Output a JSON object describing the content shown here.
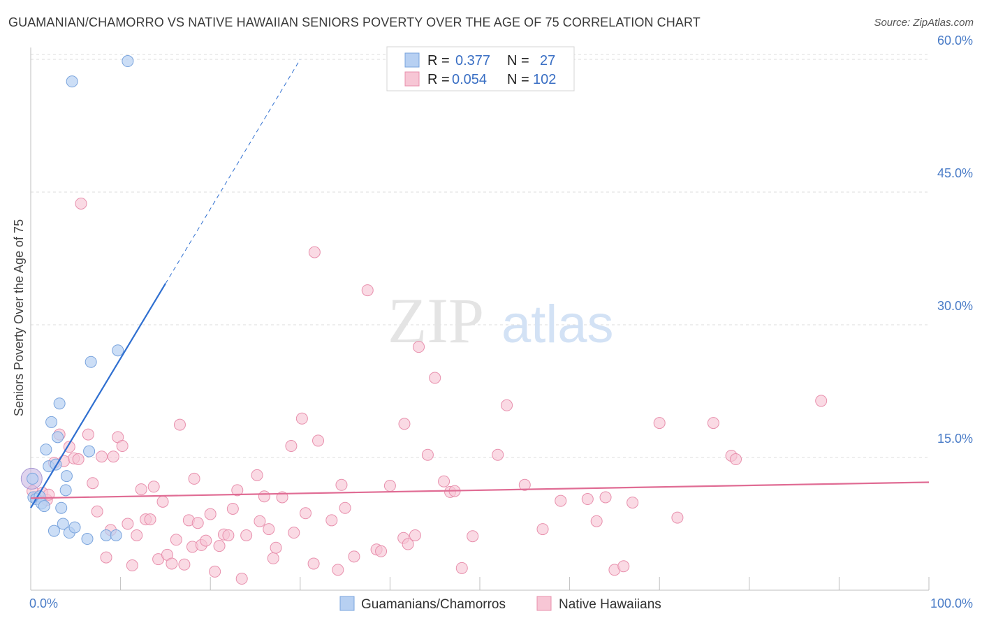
{
  "title": "GUAMANIAN/CHAMORRO VS NATIVE HAWAIIAN SENIORS POVERTY OVER THE AGE OF 75 CORRELATION CHART",
  "source": "Source: ZipAtlas.com",
  "watermark": {
    "zip": "ZIP",
    "atlas": "atlas"
  },
  "colors": {
    "blue_fill": "#b7d0f2",
    "blue_stroke": "#7aa4dd",
    "blue_line": "#2f6fd0",
    "pink_fill": "#f7c6d5",
    "pink_stroke": "#e890ad",
    "pink_line": "#e06c94",
    "grid": "#dcdcdc",
    "tick_text": "#4a7cc7"
  },
  "legend": {
    "rows": [
      {
        "r_label": "R =",
        "r_value": "0.377",
        "n_label": "N =",
        "n_value": "27"
      },
      {
        "r_label": "R =",
        "r_value": "0.054",
        "n_label": "N =",
        "n_value": "102"
      }
    ]
  },
  "bottom_legend": [
    "Guamanians/Chamorros",
    "Native Hawaiians"
  ],
  "chart_data": {
    "type": "scatter",
    "ylabel": "Seniors Poverty Over the Age of 75",
    "xlabel": "",
    "xlim": [
      0,
      100
    ],
    "ylim": [
      0,
      62
    ],
    "y_ticks": [
      15,
      30,
      45,
      60
    ],
    "y_tick_labels": [
      "15.0%",
      "30.0%",
      "45.0%",
      "60.0%"
    ],
    "x_tick_labels": [
      "0.0%",
      "100.0%"
    ],
    "grid": true,
    "series": [
      {
        "name": "Guamanians/Chamorros",
        "r": 0.377,
        "n": 27,
        "trend": {
          "x0": 0,
          "y0": 9.3,
          "x1": 30,
          "y1": 60,
          "solid_until_x": 15
        },
        "points": [
          [
            0.2,
            12.6
          ],
          [
            0.3,
            10.5
          ],
          [
            0.6,
            10.3
          ],
          [
            1.0,
            10.6
          ],
          [
            1.2,
            9.8
          ],
          [
            1.5,
            9.5
          ],
          [
            1.7,
            15.9
          ],
          [
            2.0,
            14.0
          ],
          [
            2.3,
            19.0
          ],
          [
            2.6,
            6.7
          ],
          [
            2.8,
            14.2
          ],
          [
            3.0,
            17.3
          ],
          [
            3.2,
            21.1
          ],
          [
            3.4,
            9.3
          ],
          [
            3.6,
            7.5
          ],
          [
            3.9,
            11.3
          ],
          [
            4.0,
            12.9
          ],
          [
            4.3,
            6.5
          ],
          [
            4.6,
            57.5
          ],
          [
            4.9,
            7.1
          ],
          [
            6.7,
            25.8
          ],
          [
            6.3,
            5.8
          ],
          [
            6.5,
            15.7
          ],
          [
            8.4,
            6.2
          ],
          [
            9.5,
            6.2
          ],
          [
            9.7,
            27.1
          ],
          [
            10.8,
            59.8
          ]
        ]
      },
      {
        "name": "Native Hawaiians",
        "r": 0.054,
        "n": 102,
        "trend": {
          "x0": 0,
          "y0": 10.4,
          "x1": 100,
          "y1": 12.2
        },
        "points": [
          [
            0.2,
            11.2
          ],
          [
            0.6,
            10.5
          ],
          [
            1.3,
            11.0
          ],
          [
            1.8,
            10.2
          ],
          [
            2.0,
            10.8
          ],
          [
            2.6,
            14.4
          ],
          [
            3.2,
            17.6
          ],
          [
            3.7,
            14.6
          ],
          [
            4.3,
            16.2
          ],
          [
            4.8,
            14.9
          ],
          [
            5.3,
            14.8
          ],
          [
            5.6,
            43.7
          ],
          [
            6.4,
            17.6
          ],
          [
            6.9,
            12.1
          ],
          [
            7.4,
            8.9
          ],
          [
            7.9,
            15.1
          ],
          [
            8.4,
            3.7
          ],
          [
            8.9,
            6.8
          ],
          [
            9.2,
            15.1
          ],
          [
            9.7,
            17.3
          ],
          [
            10.2,
            16.3
          ],
          [
            10.8,
            7.5
          ],
          [
            11.3,
            2.8
          ],
          [
            11.8,
            6.2
          ],
          [
            12.3,
            11.4
          ],
          [
            12.8,
            8.0
          ],
          [
            13.3,
            8.0
          ],
          [
            13.7,
            11.7
          ],
          [
            14.2,
            3.5
          ],
          [
            14.7,
            10.0
          ],
          [
            15.2,
            4.0
          ],
          [
            15.7,
            3.0
          ],
          [
            16.2,
            5.7
          ],
          [
            16.6,
            18.7
          ],
          [
            17.1,
            2.9
          ],
          [
            17.6,
            7.9
          ],
          [
            18.0,
            4.9
          ],
          [
            18.6,
            7.6
          ],
          [
            19.0,
            5.1
          ],
          [
            19.5,
            5.6
          ],
          [
            20.0,
            8.6
          ],
          [
            20.5,
            2.1
          ],
          [
            21.0,
            5.0
          ],
          [
            21.5,
            6.3
          ],
          [
            22.0,
            6.2
          ],
          [
            22.5,
            9.2
          ],
          [
            23.0,
            11.3
          ],
          [
            23.5,
            1.3
          ],
          [
            24.0,
            6.2
          ],
          [
            25.2,
            13.0
          ],
          [
            25.5,
            7.8
          ],
          [
            26.0,
            10.6
          ],
          [
            26.5,
            6.9
          ],
          [
            27.0,
            3.6
          ],
          [
            27.3,
            4.8
          ],
          [
            28.0,
            10.5
          ],
          [
            29.0,
            16.3
          ],
          [
            29.3,
            6.5
          ],
          [
            30.2,
            19.4
          ],
          [
            30.6,
            8.7
          ],
          [
            31.5,
            3.0
          ],
          [
            32.0,
            16.9
          ],
          [
            31.6,
            38.2
          ],
          [
            33.5,
            7.9
          ],
          [
            34.2,
            2.3
          ],
          [
            34.6,
            11.9
          ],
          [
            35.0,
            9.3
          ],
          [
            36.0,
            3.8
          ],
          [
            37.5,
            33.9
          ],
          [
            38.5,
            4.6
          ],
          [
            39.0,
            4.4
          ],
          [
            40.0,
            11.8
          ],
          [
            41.5,
            5.9
          ],
          [
            42.0,
            5.2
          ],
          [
            42.8,
            6.2
          ],
          [
            43.2,
            27.5
          ],
          [
            44.2,
            15.3
          ],
          [
            45.0,
            24.0
          ],
          [
            46.0,
            12.3
          ],
          [
            46.7,
            11.1
          ],
          [
            47.2,
            11.2
          ],
          [
            48.0,
            2.5
          ],
          [
            49.2,
            6.1
          ],
          [
            52.0,
            15.3
          ],
          [
            53.0,
            20.9
          ],
          [
            55.0,
            11.9
          ],
          [
            57.0,
            6.9
          ],
          [
            59.0,
            10.1
          ],
          [
            62.0,
            10.3
          ],
          [
            63.0,
            7.8
          ],
          [
            64.0,
            10.5
          ],
          [
            65.0,
            2.3
          ],
          [
            66.0,
            2.7
          ],
          [
            67.0,
            9.9
          ],
          [
            70.0,
            18.9
          ],
          [
            72.0,
            8.2
          ],
          [
            76.0,
            18.9
          ],
          [
            78.0,
            15.2
          ],
          [
            78.5,
            14.8
          ],
          [
            88.0,
            21.4
          ],
          [
            41.6,
            18.8
          ],
          [
            18.2,
            12.6
          ]
        ]
      }
    ]
  }
}
